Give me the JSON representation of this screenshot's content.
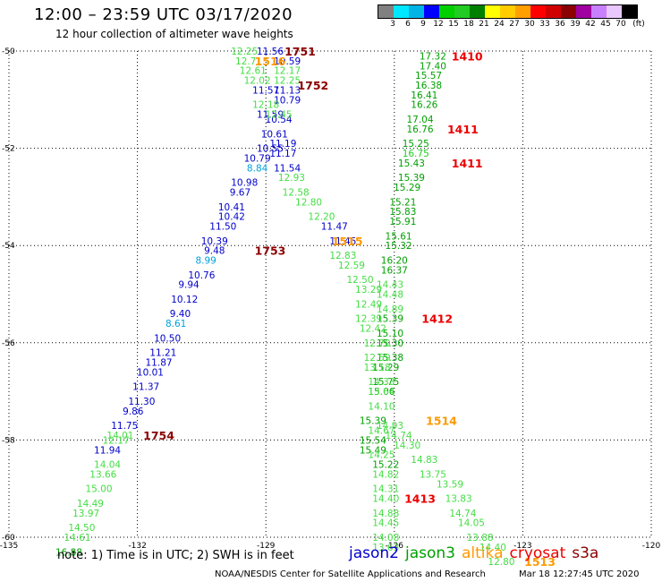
{
  "title": "12:00 – 23:59 UTC 03/17/2020",
  "subtitle": "12 hour collection of altimeter wave heights",
  "legend": {
    "unit": "(ft)",
    "ticks": [
      "3",
      "6",
      "9",
      "12",
      "15",
      "18",
      "21",
      "24",
      "27",
      "30",
      "33",
      "36",
      "39",
      "42",
      "45",
      "70"
    ],
    "colors": [
      "#808080",
      "#00e8ff",
      "#00b4e6",
      "#0000ff",
      "#00d000",
      "#22cc22",
      "#008000",
      "#ffff00",
      "#ffcc00",
      "#ffa000",
      "#ff0000",
      "#d00000",
      "#8b0000",
      "#a000a0",
      "#c880ff",
      "#e8c8ff",
      "#000000"
    ]
  },
  "axes": {
    "lat_labels": [
      "-50",
      "-52",
      "-54",
      "-56",
      "-58",
      "-60"
    ],
    "lon_labels": [
      "-135",
      "-132",
      "-129",
      "-126",
      "-123",
      "-120"
    ]
  },
  "note": "note:  1) Time is in UTC;  2) SWH is in feet",
  "satellites": [
    {
      "name": "jason2",
      "color": "#0000cc"
    },
    {
      "name": "jason3",
      "color": "#00a000"
    },
    {
      "name": "altika",
      "color": "#ff9900"
    },
    {
      "name": "cryosat",
      "color": "#ee0000"
    },
    {
      "name": "s3a",
      "color": "#8b0000"
    }
  ],
  "credit": "NOAA/NESDIS Center for Satellite Applications and Research",
  "timestamp": "Mar 18 12:27:45 UTC 2020",
  "chart_data": {
    "type": "scatter",
    "title": "12:00 – 23:59 UTC 03/17/2020",
    "xlabel": "",
    "ylabel": "",
    "xlim": [
      -135,
      -120
    ],
    "ylim": [
      -60,
      -50
    ],
    "xticks": [
      -135,
      -132,
      -129,
      -126,
      -123,
      -120
    ],
    "yticks": [
      -50,
      -52,
      -54,
      -56,
      -58,
      -60
    ],
    "grid": true,
    "series": [
      {
        "name": "jason2",
        "points": [
          {
            "x": -128.9,
            "y": -50.0,
            "v": "11.56",
            "c": "#0000cc"
          },
          {
            "x": -128.5,
            "y": -50.2,
            "v": "10.59",
            "c": "#0000cc"
          },
          {
            "x": -129.0,
            "y": -50.8,
            "v": "11.57",
            "c": "#0000cc"
          },
          {
            "x": -128.5,
            "y": -50.8,
            "v": "11.13",
            "c": "#0000cc"
          },
          {
            "x": -128.5,
            "y": -51.0,
            "v": "10.79",
            "c": "#0000cc"
          },
          {
            "x": -128.9,
            "y": -51.3,
            "v": "11.59",
            "c": "#0000cc"
          },
          {
            "x": -128.7,
            "y": -51.4,
            "v": "10.54",
            "c": "#0000cc"
          },
          {
            "x": -128.8,
            "y": -51.7,
            "v": "10.61",
            "c": "#0000cc"
          },
          {
            "x": -128.6,
            "y": -51.9,
            "v": "11.19",
            "c": "#0000cc"
          },
          {
            "x": -128.9,
            "y": -52.0,
            "v": "10.55",
            "c": "#0000cc"
          },
          {
            "x": -128.6,
            "y": -52.1,
            "v": "11.17",
            "c": "#0000cc"
          },
          {
            "x": -129.2,
            "y": -52.2,
            "v": "10.79",
            "c": "#0000cc"
          },
          {
            "x": -129.2,
            "y": -52.4,
            "v": "8.84",
            "c": "#00a0dd"
          },
          {
            "x": -128.5,
            "y": -52.4,
            "v": "11.54",
            "c": "#0000cc"
          },
          {
            "x": -129.5,
            "y": -52.7,
            "v": "10.98",
            "c": "#0000cc"
          },
          {
            "x": -129.6,
            "y": -52.9,
            "v": "9.67",
            "c": "#0000cc"
          },
          {
            "x": -129.8,
            "y": -53.2,
            "v": "10.41",
            "c": "#0000cc"
          },
          {
            "x": -129.8,
            "y": -53.4,
            "v": "10.42",
            "c": "#0000cc"
          },
          {
            "x": -127.4,
            "y": -53.6,
            "v": "11.47",
            "c": "#0000cc"
          },
          {
            "x": -130.0,
            "y": -53.6,
            "v": "11.50",
            "c": "#0000cc"
          },
          {
            "x": -127.2,
            "y": -53.9,
            "v": "11.45",
            "c": "#0000cc"
          },
          {
            "x": -130.2,
            "y": -53.9,
            "v": "10.39",
            "c": "#0000cc"
          },
          {
            "x": -130.2,
            "y": -54.1,
            "v": "9.48",
            "c": "#0000cc"
          },
          {
            "x": -130.4,
            "y": -54.3,
            "v": "8.99",
            "c": "#00a0dd"
          },
          {
            "x": -130.5,
            "y": -54.6,
            "v": "10.76",
            "c": "#0000cc"
          },
          {
            "x": -130.8,
            "y": -54.8,
            "v": "9.94",
            "c": "#0000cc"
          },
          {
            "x": -130.9,
            "y": -55.1,
            "v": "10.12",
            "c": "#0000cc"
          },
          {
            "x": -131.0,
            "y": -55.4,
            "v": "9.40",
            "c": "#0000cc"
          },
          {
            "x": -131.1,
            "y": -55.6,
            "v": "8.61",
            "c": "#00a0dd"
          },
          {
            "x": -131.3,
            "y": -55.9,
            "v": "10.50",
            "c": "#0000cc"
          },
          {
            "x": -131.4,
            "y": -56.2,
            "v": "11.21",
            "c": "#0000cc"
          },
          {
            "x": -131.5,
            "y": -56.4,
            "v": "11.87",
            "c": "#0000cc"
          },
          {
            "x": -131.7,
            "y": -56.6,
            "v": "10.01",
            "c": "#0000cc"
          },
          {
            "x": -131.8,
            "y": -56.9,
            "v": "11.37",
            "c": "#0000cc"
          },
          {
            "x": -131.9,
            "y": -57.2,
            "v": "11.30",
            "c": "#0000cc"
          },
          {
            "x": -132.1,
            "y": -57.4,
            "v": "9.86",
            "c": "#0000cc"
          },
          {
            "x": -132.3,
            "y": -57.7,
            "v": "11.75",
            "c": "#0000cc"
          },
          {
            "x": -132.7,
            "y": -58.2,
            "v": "11.94",
            "c": "#0000cc"
          }
        ]
      },
      {
        "name": "jason3",
        "points": [
          {
            "x": -125.1,
            "y": -50.1,
            "v": "17.32",
            "c": "#00a000"
          },
          {
            "x": -125.1,
            "y": -50.3,
            "v": "17.40",
            "c": "#00a000"
          },
          {
            "x": -125.2,
            "y": -50.5,
            "v": "15.57",
            "c": "#00a000"
          },
          {
            "x": -125.2,
            "y": -50.7,
            "v": "16.38",
            "c": "#00a000"
          },
          {
            "x": -125.3,
            "y": -50.9,
            "v": "16.41",
            "c": "#00a000"
          },
          {
            "x": -125.3,
            "y": -51.1,
            "v": "16.26",
            "c": "#00a000"
          },
          {
            "x": -125.4,
            "y": -51.4,
            "v": "17.04",
            "c": "#00a000"
          },
          {
            "x": -125.4,
            "y": -51.6,
            "v": "16.76",
            "c": "#00a000"
          },
          {
            "x": -125.5,
            "y": -51.9,
            "v": "15.25",
            "c": "#00a000"
          },
          {
            "x": -125.5,
            "y": -52.1,
            "v": "16.75",
            "c": "#22cc22"
          },
          {
            "x": -125.6,
            "y": -52.3,
            "v": "15.43",
            "c": "#00a000"
          },
          {
            "x": -125.6,
            "y": -52.6,
            "v": "15.39",
            "c": "#00a000"
          },
          {
            "x": -125.7,
            "y": -52.8,
            "v": "15.29",
            "c": "#00a000"
          },
          {
            "x": -125.8,
            "y": -53.1,
            "v": "15.21",
            "c": "#00a000"
          },
          {
            "x": -125.8,
            "y": -53.3,
            "v": "15.83",
            "c": "#00a000"
          },
          {
            "x": -125.8,
            "y": -53.5,
            "v": "15.91",
            "c": "#00a000"
          },
          {
            "x": -125.9,
            "y": -53.8,
            "v": "15.61",
            "c": "#00a000"
          },
          {
            "x": -125.9,
            "y": -54.0,
            "v": "15.32",
            "c": "#00a000"
          },
          {
            "x": -126.0,
            "y": -54.3,
            "v": "16.20",
            "c": "#00a000"
          },
          {
            "x": -126.0,
            "y": -54.5,
            "v": "16.37",
            "c": "#00a000"
          },
          {
            "x": -126.1,
            "y": -54.8,
            "v": "14.43",
            "c": "#44dd44"
          },
          {
            "x": -126.1,
            "y": -55.0,
            "v": "14.48",
            "c": "#44dd44"
          },
          {
            "x": -126.1,
            "y": -55.3,
            "v": "14.89",
            "c": "#44dd44"
          },
          {
            "x": -126.1,
            "y": -55.5,
            "v": "15.39",
            "c": "#00a000"
          },
          {
            "x": -126.1,
            "y": -55.8,
            "v": "15.10",
            "c": "#00a000"
          },
          {
            "x": -126.1,
            "y": -56.0,
            "v": "15.30",
            "c": "#00a000"
          },
          {
            "x": -126.1,
            "y": -56.3,
            "v": "15.38",
            "c": "#00a000"
          },
          {
            "x": -126.2,
            "y": -56.5,
            "v": "15.29",
            "c": "#00a000"
          },
          {
            "x": -126.2,
            "y": -56.8,
            "v": "15.75",
            "c": "#00a000"
          },
          {
            "x": -126.3,
            "y": -57.0,
            "v": "15.06",
            "c": "#00a000"
          },
          {
            "x": -126.3,
            "y": -57.3,
            "v": "14.10",
            "c": "#44dd44"
          },
          {
            "x": -126.5,
            "y": -57.6,
            "v": "15.39",
            "c": "#00a000"
          },
          {
            "x": -126.1,
            "y": -57.7,
            "v": "14.93",
            "c": "#44dd44"
          },
          {
            "x": -125.9,
            "y": -57.9,
            "v": "14.74",
            "c": "#44dd44"
          },
          {
            "x": -126.5,
            "y": -58.0,
            "v": "15.54",
            "c": "#00a000"
          },
          {
            "x": -125.7,
            "y": -58.1,
            "v": "14.30",
            "c": "#44dd44"
          },
          {
            "x": -126.5,
            "y": -58.2,
            "v": "15.49",
            "c": "#00a000"
          },
          {
            "x": -125.3,
            "y": -58.4,
            "v": "14.83",
            "c": "#44dd44"
          },
          {
            "x": -125.1,
            "y": -58.7,
            "v": "13.75",
            "c": "#44dd44"
          },
          {
            "x": -124.7,
            "y": -58.9,
            "v": "13.59",
            "c": "#44dd44"
          },
          {
            "x": -124.5,
            "y": -59.2,
            "v": "13.83",
            "c": "#44dd44"
          },
          {
            "x": -124.4,
            "y": -59.5,
            "v": "14.74",
            "c": "#44dd44"
          },
          {
            "x": -124.2,
            "y": -59.7,
            "v": "14.05",
            "c": "#44dd44"
          },
          {
            "x": -124.0,
            "y": -60.0,
            "v": "13.88",
            "c": "#44dd44"
          },
          {
            "x": -123.7,
            "y": -60.2,
            "v": "14.40",
            "c": "#44dd44"
          },
          {
            "x": -123.5,
            "y": -60.5,
            "v": "12.80",
            "c": "#44dd44"
          }
        ]
      },
      {
        "name": "altika",
        "points": [
          {
            "x": -129.5,
            "y": -50.0,
            "v": "12.25",
            "c": "#44dd44"
          },
          {
            "x": -129.4,
            "y": -50.2,
            "v": "12.71",
            "c": "#44dd44"
          },
          {
            "x": -128.5,
            "y": -50.4,
            "v": "12.17",
            "c": "#44dd44"
          },
          {
            "x": -129.3,
            "y": -50.4,
            "v": "12.61",
            "c": "#44dd44"
          },
          {
            "x": -128.5,
            "y": -50.6,
            "v": "12.25",
            "c": "#44dd44"
          },
          {
            "x": -129.2,
            "y": -50.6,
            "v": "12.02",
            "c": "#44dd44"
          },
          {
            "x": -129.0,
            "y": -51.1,
            "v": "12.18",
            "c": "#44dd44"
          },
          {
            "x": -128.7,
            "y": -51.3,
            "v": "12.45",
            "c": "#44dd44"
          },
          {
            "x": -128.4,
            "y": -52.6,
            "v": "12.93",
            "c": "#44dd44"
          },
          {
            "x": -128.3,
            "y": -52.9,
            "v": "12.58",
            "c": "#44dd44"
          },
          {
            "x": -128.0,
            "y": -53.1,
            "v": "12.80",
            "c": "#44dd44"
          },
          {
            "x": -127.7,
            "y": -53.4,
            "v": "12.20",
            "c": "#44dd44"
          },
          {
            "x": -127.2,
            "y": -54.2,
            "v": "12.83",
            "c": "#44dd44"
          },
          {
            "x": -127.0,
            "y": -54.4,
            "v": "12.59",
            "c": "#44dd44"
          },
          {
            "x": -126.8,
            "y": -54.7,
            "v": "12.50",
            "c": "#44dd44"
          },
          {
            "x": -126.6,
            "y": -54.9,
            "v": "13.29",
            "c": "#44dd44"
          },
          {
            "x": -126.6,
            "y": -55.2,
            "v": "12.49",
            "c": "#44dd44"
          },
          {
            "x": -126.6,
            "y": -55.5,
            "v": "12.39",
            "c": "#44dd44"
          },
          {
            "x": -126.5,
            "y": -55.7,
            "v": "12.42",
            "c": "#44dd44"
          },
          {
            "x": -126.4,
            "y": -56.0,
            "v": "12.70",
            "c": "#44dd44"
          },
          {
            "x": -126.4,
            "y": -56.3,
            "v": "12.59",
            "c": "#44dd44"
          },
          {
            "x": -126.4,
            "y": -56.5,
            "v": "13.18",
            "c": "#44dd44"
          },
          {
            "x": -126.3,
            "y": -56.8,
            "v": "14.33",
            "c": "#44dd44"
          },
          {
            "x": -126.3,
            "y": -57.0,
            "v": "13.64",
            "c": "#44dd44"
          },
          {
            "x": -126.3,
            "y": -57.8,
            "v": "14.67",
            "c": "#44dd44"
          },
          {
            "x": -126.3,
            "y": -58.3,
            "v": "14.25",
            "c": "#44dd44"
          },
          {
            "x": -126.2,
            "y": -58.5,
            "v": "15.22",
            "c": "#00a000"
          },
          {
            "x": -126.2,
            "y": -58.7,
            "v": "14.82",
            "c": "#44dd44"
          },
          {
            "x": -126.2,
            "y": -59.0,
            "v": "14.31",
            "c": "#44dd44"
          },
          {
            "x": -126.2,
            "y": -59.2,
            "v": "14.40",
            "c": "#44dd44"
          },
          {
            "x": -126.2,
            "y": -59.5,
            "v": "14.88",
            "c": "#44dd44"
          },
          {
            "x": -126.2,
            "y": -59.7,
            "v": "14.45",
            "c": "#44dd44"
          },
          {
            "x": -126.2,
            "y": -60.0,
            "v": "14.08",
            "c": "#44dd44"
          },
          {
            "x": -126.2,
            "y": -60.2,
            "v": "13.63",
            "c": "#44dd44"
          }
        ]
      },
      {
        "name": "s3a",
        "points": [
          {
            "x": -132.4,
            "y": -57.9,
            "v": "14.01",
            "c": "#44dd44"
          },
          {
            "x": -132.5,
            "y": -58.0,
            "v": "12.17",
            "c": "#44dd44"
          },
          {
            "x": -132.7,
            "y": -58.5,
            "v": "14.04",
            "c": "#44dd44"
          },
          {
            "x": -132.8,
            "y": -58.7,
            "v": "13.66",
            "c": "#44dd44"
          },
          {
            "x": -132.9,
            "y": -59.0,
            "v": "15.00",
            "c": "#44dd44"
          },
          {
            "x": -133.1,
            "y": -59.3,
            "v": "14.49",
            "c": "#44dd44"
          },
          {
            "x": -133.2,
            "y": -59.5,
            "v": "13.97",
            "c": "#44dd44"
          },
          {
            "x": -133.3,
            "y": -59.8,
            "v": "14.50",
            "c": "#44dd44"
          },
          {
            "x": -133.4,
            "y": -60.0,
            "v": "14.61",
            "c": "#44dd44"
          },
          {
            "x": -133.6,
            "y": -60.3,
            "v": "16.88",
            "c": "#00a000"
          }
        ]
      }
    ],
    "pass_labels": [
      {
        "x": -128.2,
        "y": -50.0,
        "text": "1751",
        "c": "#8b0000"
      },
      {
        "x": -128.9,
        "y": -50.2,
        "text": "1516",
        "c": "#ff9900"
      },
      {
        "x": -127.9,
        "y": -50.7,
        "text": "1752",
        "c": "#8b0000"
      },
      {
        "x": -124.3,
        "y": -50.1,
        "text": "1410",
        "c": "#ee0000"
      },
      {
        "x": -124.4,
        "y": -51.6,
        "text": "1411",
        "c": "#ee0000"
      },
      {
        "x": -124.3,
        "y": -52.3,
        "text": "1411",
        "c": "#ee0000"
      },
      {
        "x": -127.1,
        "y": -53.9,
        "text": "1515",
        "c": "#ff9900"
      },
      {
        "x": -128.9,
        "y": -54.1,
        "text": "1753",
        "c": "#8b0000"
      },
      {
        "x": -125.0,
        "y": -55.5,
        "text": "1412",
        "c": "#ee0000"
      },
      {
        "x": -124.9,
        "y": -57.6,
        "text": "1514",
        "c": "#ff9900"
      },
      {
        "x": -131.5,
        "y": -57.9,
        "text": "1754",
        "c": "#8b0000"
      },
      {
        "x": -125.4,
        "y": -59.2,
        "text": "1413",
        "c": "#ee0000"
      },
      {
        "x": -122.6,
        "y": -60.5,
        "text": "1513",
        "c": "#ff9900"
      }
    ]
  }
}
